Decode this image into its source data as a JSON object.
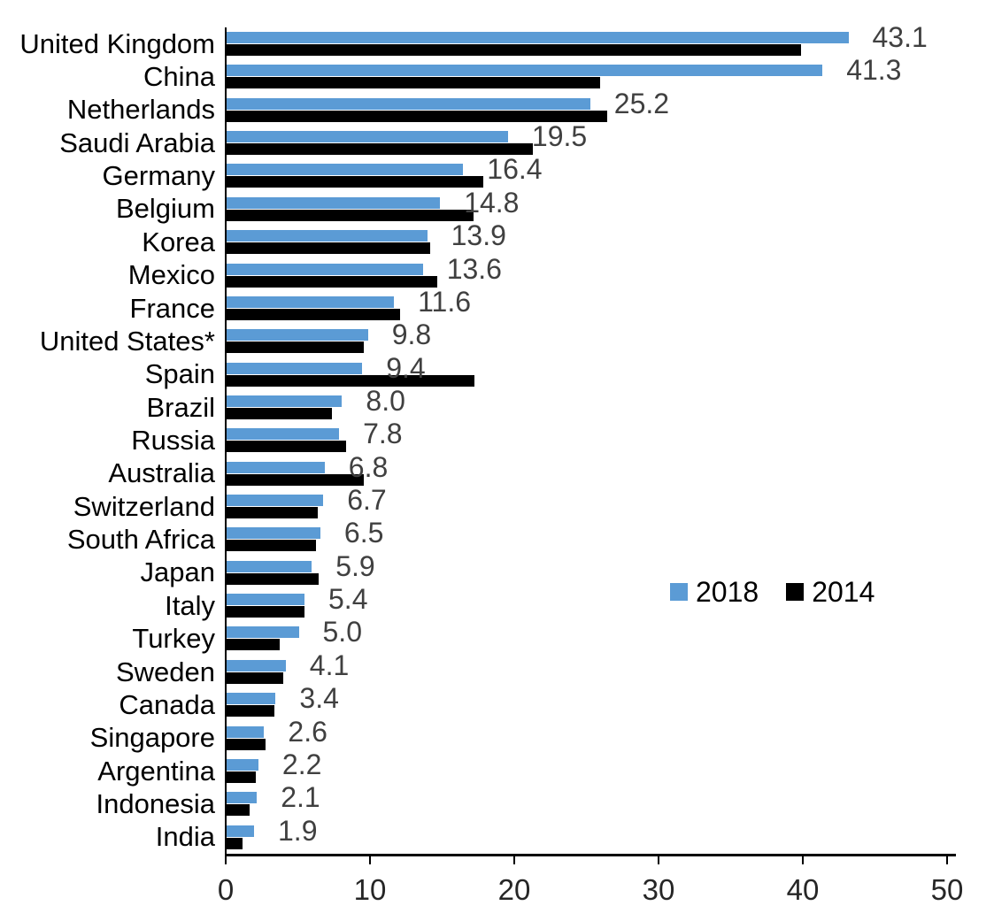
{
  "chart_data": {
    "type": "bar",
    "orientation": "horizontal",
    "title": "",
    "xlabel": "",
    "ylabel": "",
    "xlim": [
      0,
      50
    ],
    "xticks": [
      0,
      10,
      20,
      30,
      40,
      50
    ],
    "grid": false,
    "legend_position": "middle-right",
    "categories": [
      "United Kingdom",
      "China",
      "Netherlands",
      "Saudi Arabia",
      "Germany",
      "Belgium",
      "Korea",
      "Mexico",
      "France",
      "United States*",
      "Spain",
      "Brazil",
      "Russia",
      "Australia",
      "Switzerland",
      "South Africa",
      "Japan",
      "Italy",
      "Turkey",
      "Sweden",
      "Canada",
      "Singapore",
      "Argentina",
      "Indonesia",
      "India"
    ],
    "series": [
      {
        "name": "2018",
        "color": "#5B9BD5",
        "values": [
          43.1,
          41.3,
          25.2,
          19.5,
          16.4,
          14.8,
          13.9,
          13.6,
          11.6,
          9.8,
          9.4,
          8.0,
          7.8,
          6.8,
          6.7,
          6.5,
          5.9,
          5.4,
          5.0,
          4.1,
          3.4,
          2.6,
          2.2,
          2.1,
          1.9
        ]
      },
      {
        "name": "2014",
        "color": "#000000",
        "values": [
          39.8,
          25.9,
          26.4,
          21.2,
          17.8,
          17.1,
          14.1,
          14.6,
          12.0,
          9.5,
          17.2,
          7.3,
          8.3,
          9.5,
          6.3,
          6.2,
          6.4,
          5.4,
          3.7,
          3.9,
          3.3,
          2.7,
          2.0,
          1.6,
          1.1
        ]
      }
    ],
    "data_labels": {
      "series": "2018",
      "values": [
        "43.1",
        "41.3",
        "25.2",
        "19.5",
        "16.4",
        "14.8",
        "13.9",
        "13.6",
        "11.6",
        "9.8",
        "9.4",
        "8.0",
        "7.8",
        "6.8",
        "6.7",
        "6.5",
        "5.9",
        "5.4",
        "5.0",
        "4.1",
        "3.4",
        "2.6",
        "2.2",
        "2.1",
        "1.9"
      ],
      "color": "#404040"
    },
    "legend": [
      "2018",
      "2014"
    ]
  },
  "colors": {
    "bar_2018": "#5B9BD5",
    "bar_2014": "#000000",
    "axis": "#000000",
    "tick_label": "#262626",
    "category_label": "#000000",
    "value_label": "#404040",
    "background": "#ffffff"
  }
}
